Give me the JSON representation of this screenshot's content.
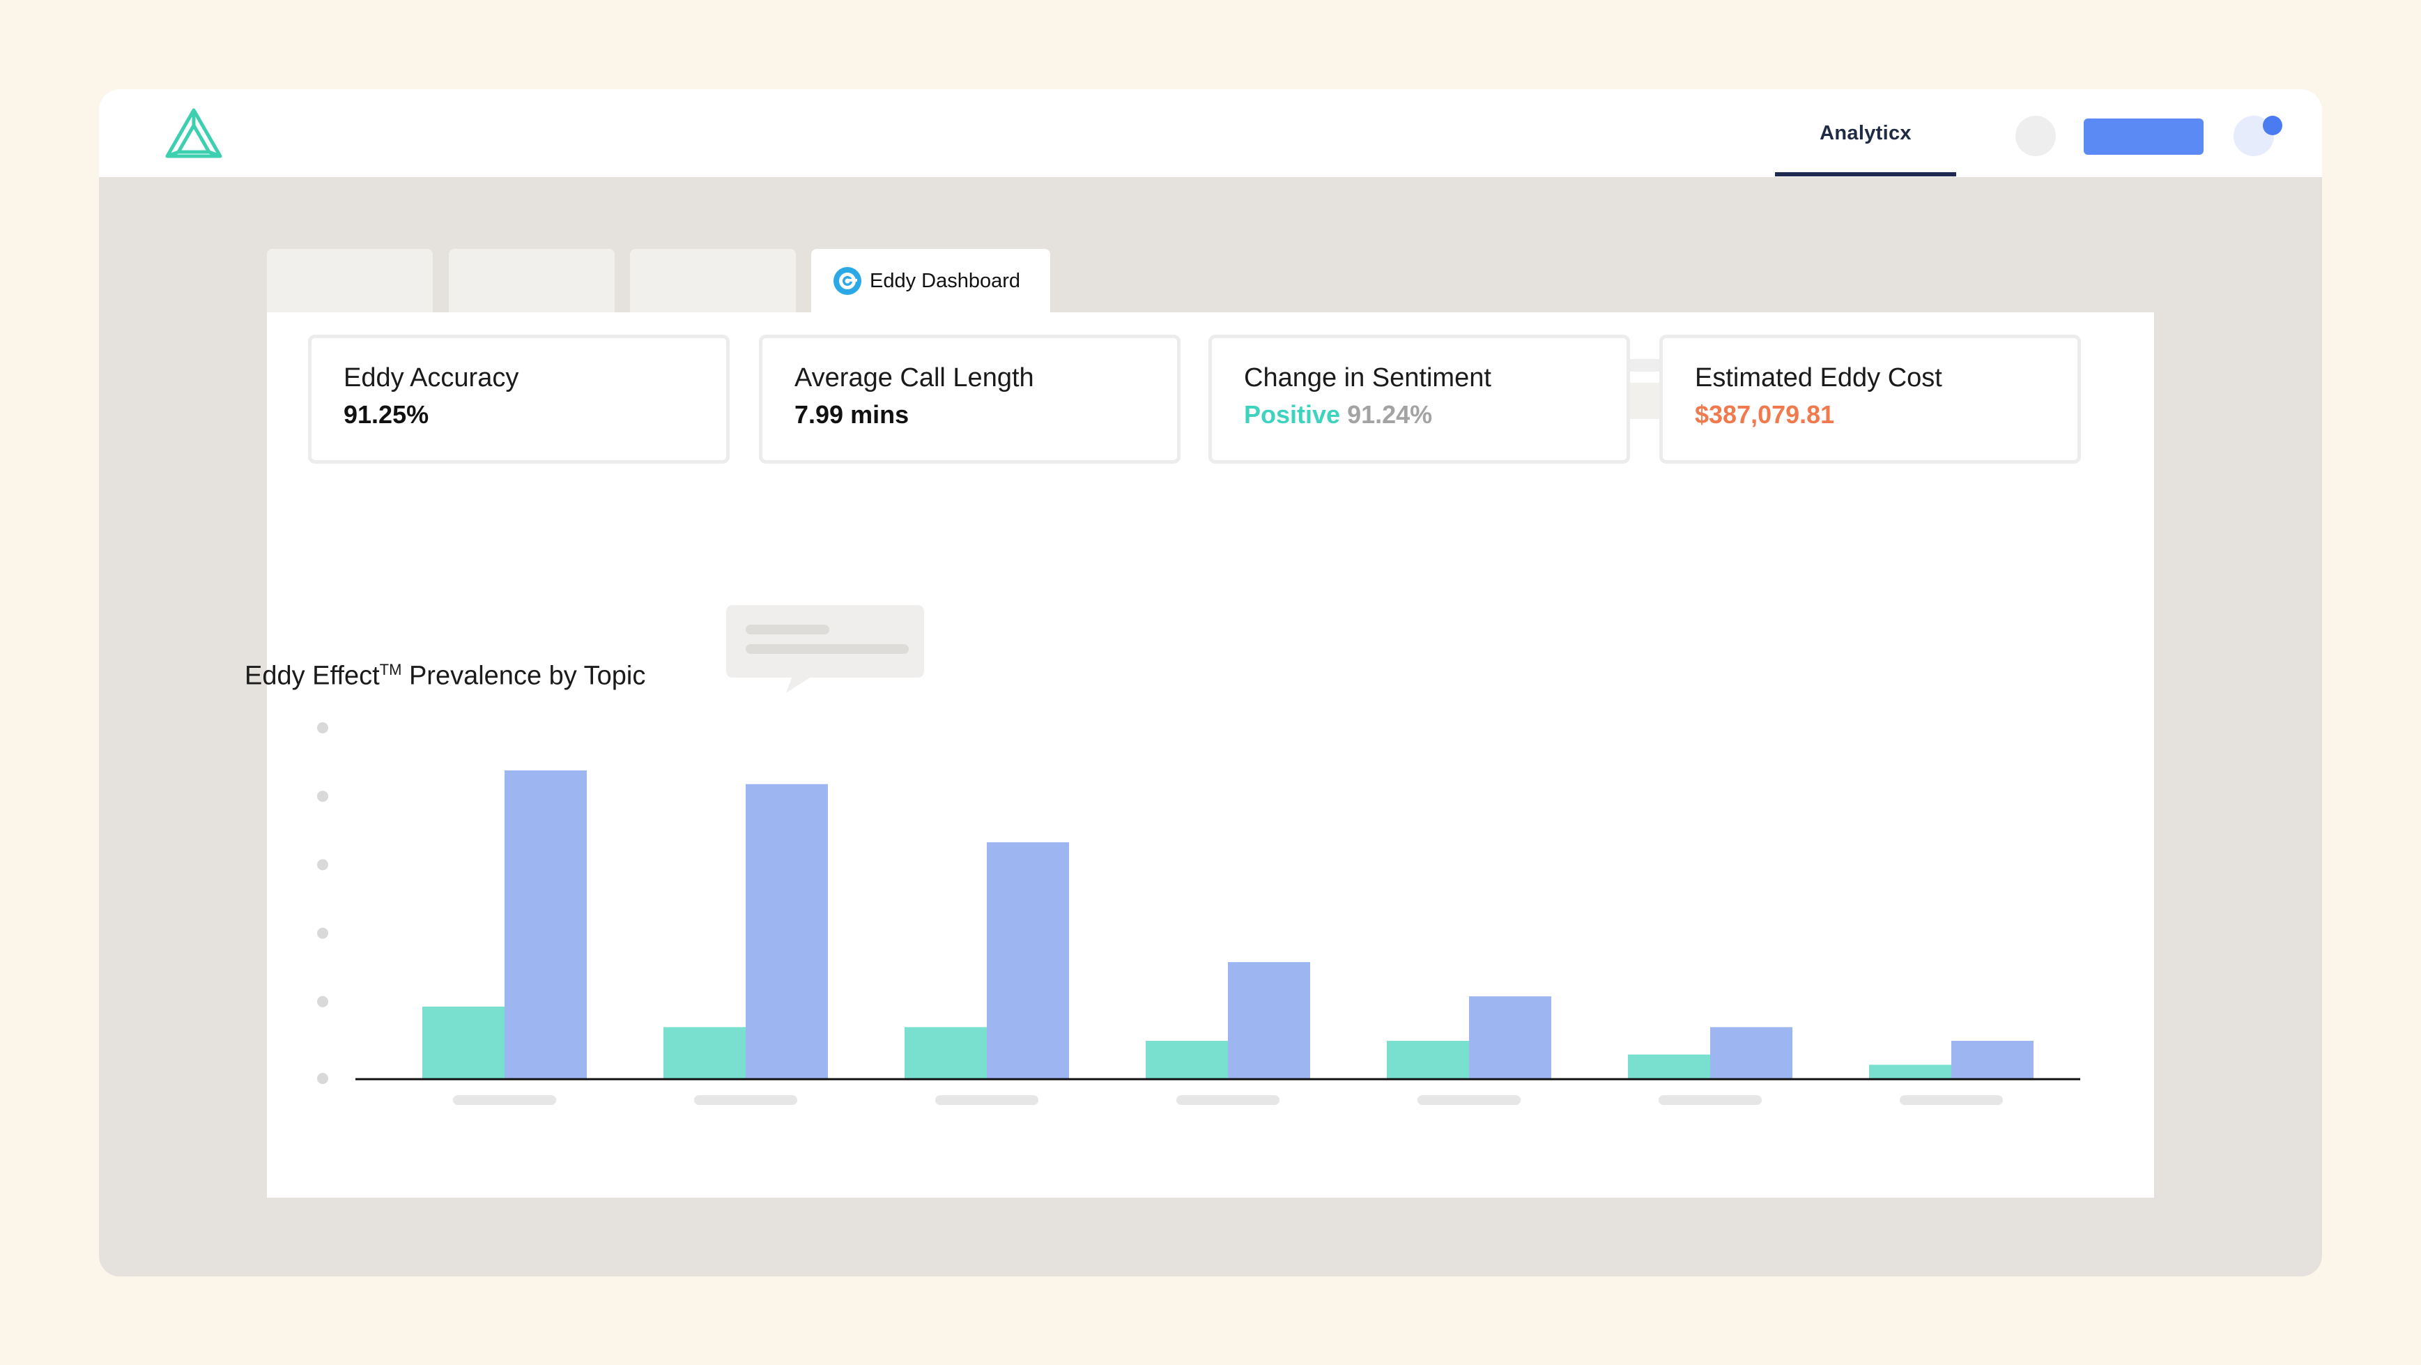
{
  "header": {
    "nav_tab_label": "Analyticx",
    "logo_icon": "triangle-logo-icon",
    "brand_color": "#3ccfb0",
    "accent_color": "#5b8af5"
  },
  "tabs": [
    {
      "label": ""
    },
    {
      "label": ""
    },
    {
      "label": ""
    },
    {
      "label": "Eddy Dashboard",
      "icon": "eddy-swirl-icon",
      "active": true
    }
  ],
  "metrics": [
    {
      "title": "Eddy Accuracy",
      "value": "91.25%"
    },
    {
      "title": "Average Call Length",
      "value": "7.99 mins"
    },
    {
      "title": "Change in Sentiment",
      "value_label": "Positive",
      "value": "91.24%"
    },
    {
      "title": "Estimated Eddy Cost",
      "value": "$387,079.81"
    }
  ],
  "chart": {
    "title": "Eddy Effect",
    "title_sup": "TM",
    "title_rest": " Prevalence by Topic"
  },
  "chart_data": {
    "type": "bar",
    "title": "Eddy Effect™ Prevalence by Topic",
    "categories": [
      "",
      "",
      "",
      "",
      "",
      "",
      ""
    ],
    "series": [
      {
        "color": "#79e0cf",
        "values": [
          21,
          15,
          15,
          11,
          11,
          7,
          4
        ]
      },
      {
        "color": "#9db6f2",
        "values": [
          90,
          86,
          69,
          34,
          24,
          15,
          11
        ]
      }
    ],
    "ylim": [
      0,
      100
    ],
    "grid": false
  }
}
